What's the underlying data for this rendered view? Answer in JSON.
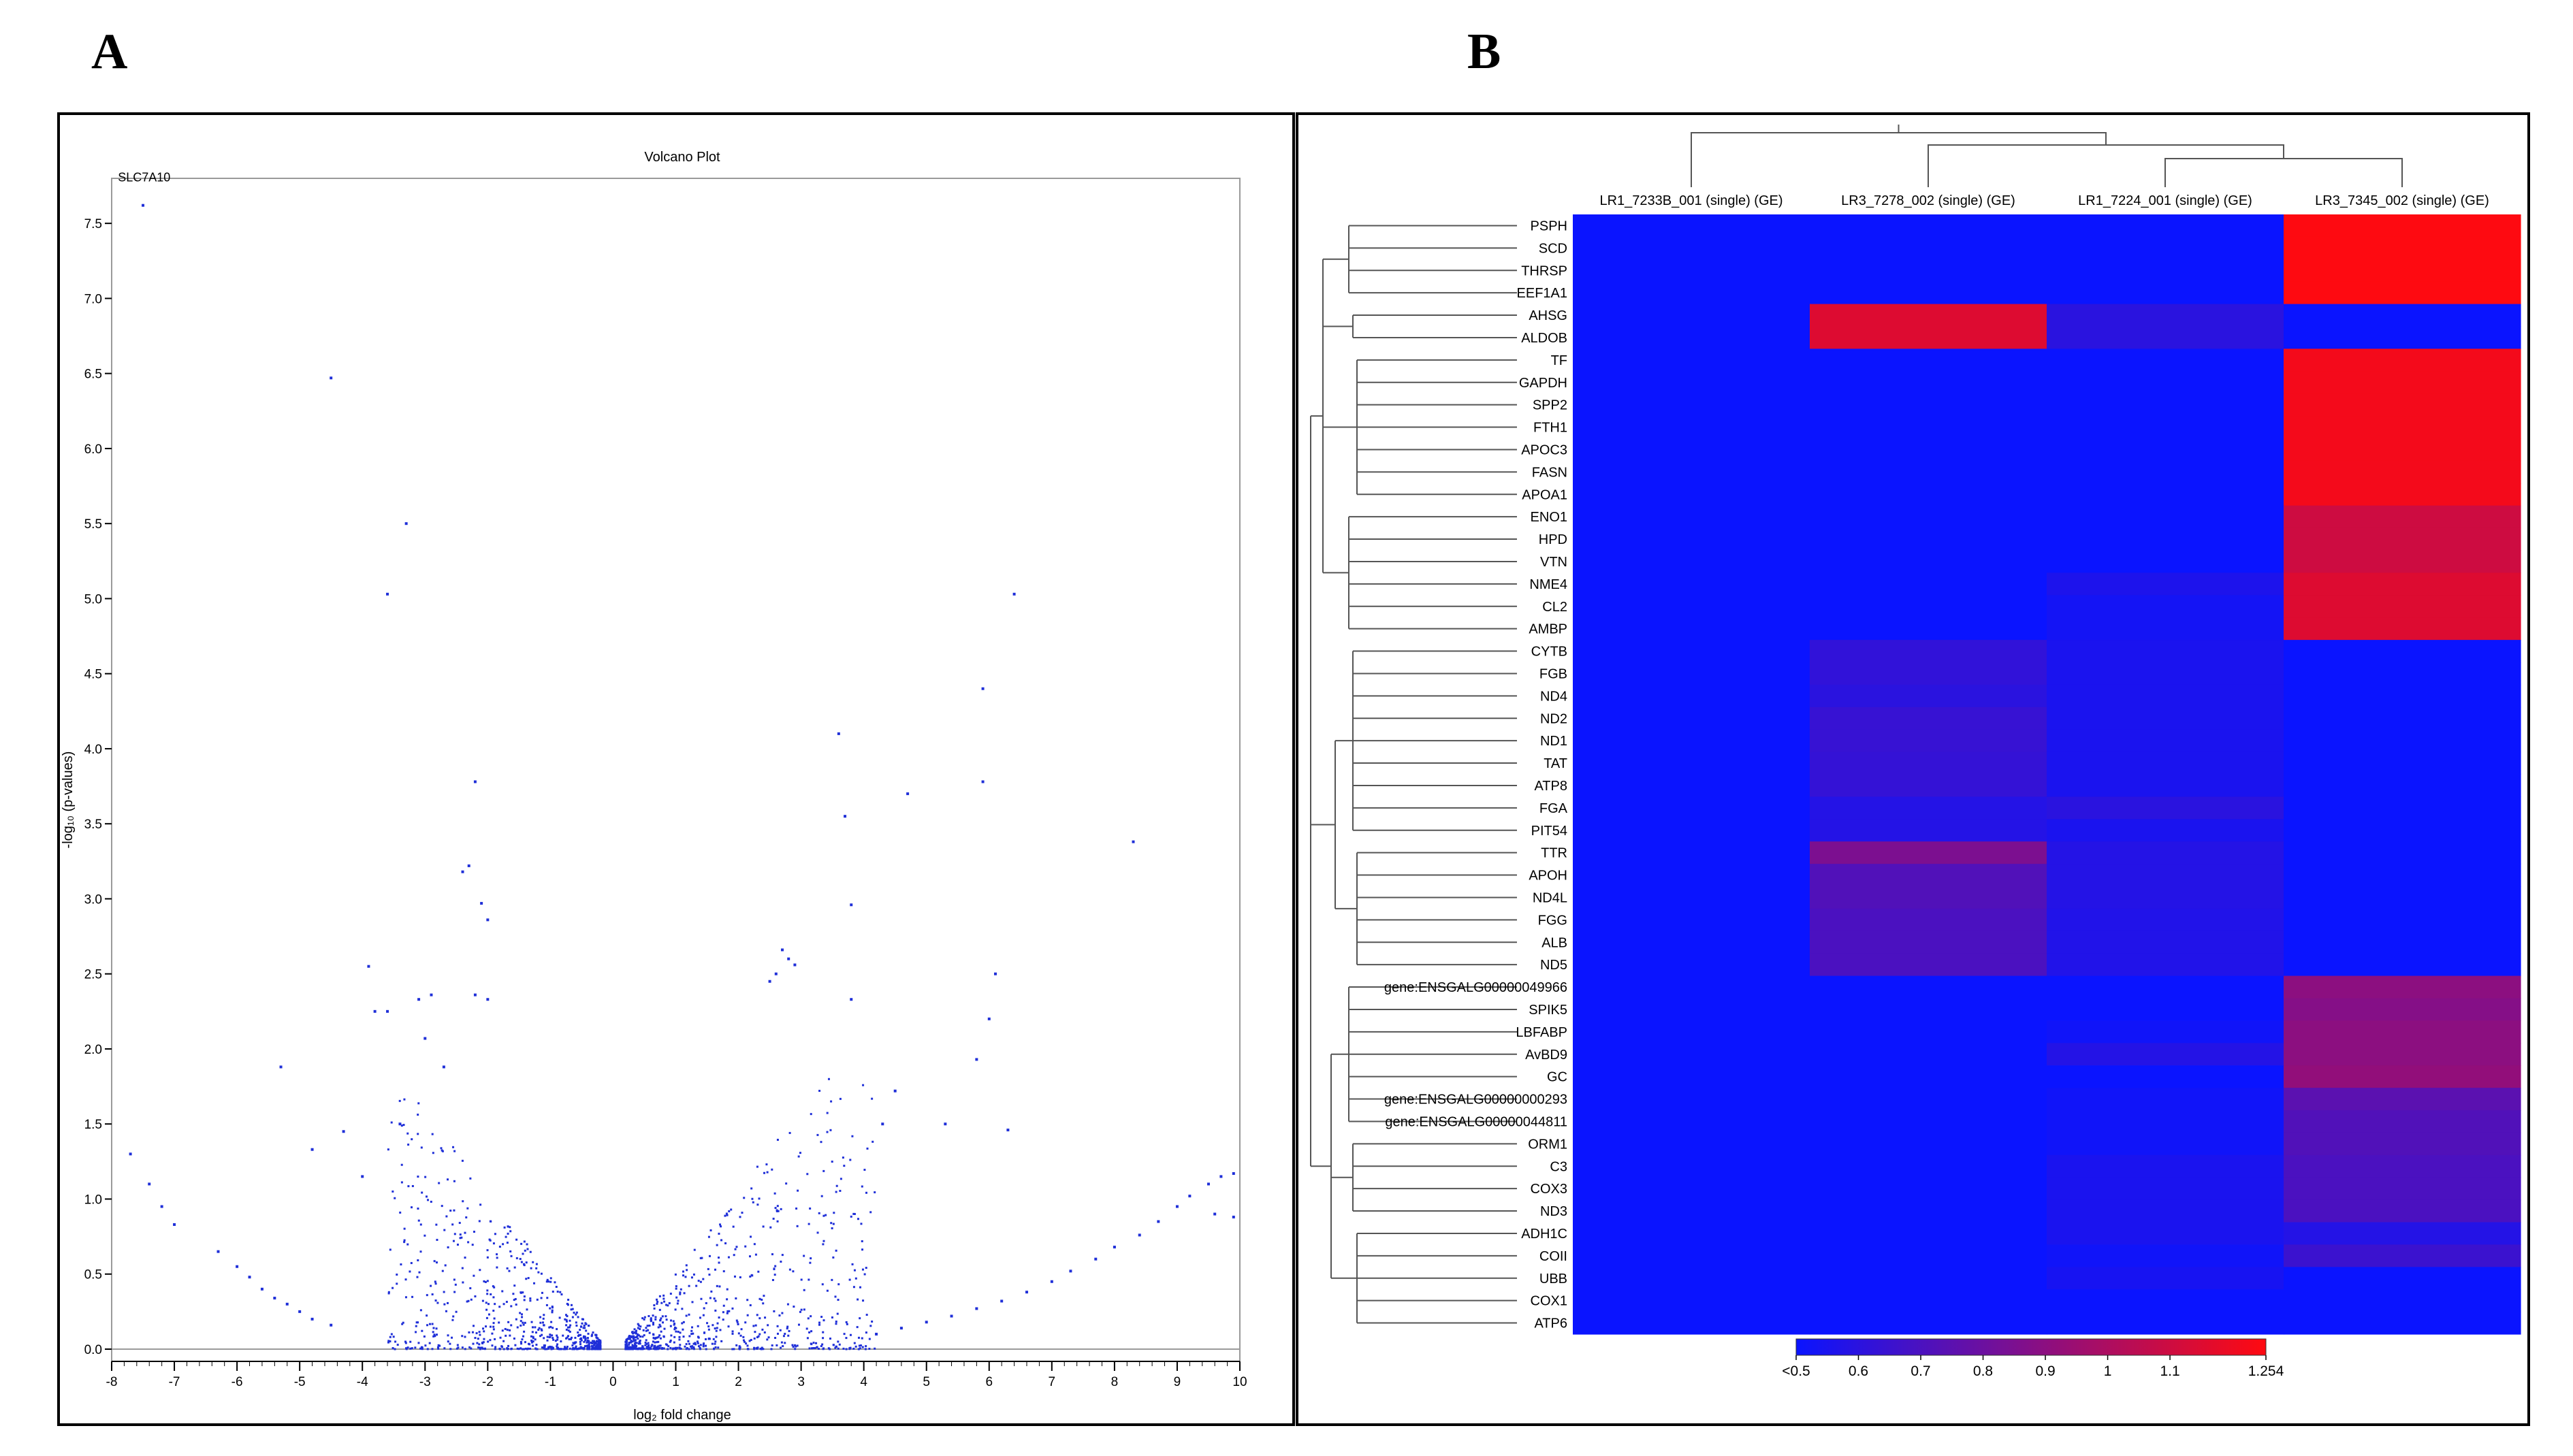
{
  "panels": {
    "a": {
      "letter": "A"
    },
    "b": {
      "letter": "B"
    }
  },
  "chart_data": [
    {
      "type": "scatter",
      "title": "Volcano Plot",
      "xlabel": "log₂ fold change",
      "ylabel": "-log₁₀ (p-values)",
      "xlim": [
        -8,
        10
      ],
      "ylim": [
        0,
        7.8
      ],
      "x_ticks": [
        -8,
        -7,
        -6,
        -5,
        -4,
        -3,
        -2,
        -1,
        0,
        1,
        2,
        3,
        4,
        5,
        6,
        7,
        8,
        9,
        10
      ],
      "y_ticks": [
        0.0,
        0.5,
        1.0,
        1.5,
        2.0,
        2.5,
        3.0,
        3.5,
        4.0,
        4.5,
        5.0,
        5.5,
        6.0,
        6.5,
        7.0,
        7.5
      ],
      "point_color": "#1f2fd8",
      "annotations": [
        {
          "text": "SLC7A10",
          "x": -7.9,
          "y": 7.78
        }
      ],
      "points": [
        {
          "x": -7.5,
          "y": 7.62
        },
        {
          "x": -4.5,
          "y": 6.47
        },
        {
          "x": -3.3,
          "y": 5.5
        },
        {
          "x": -3.6,
          "y": 5.03
        },
        {
          "x": 6.4,
          "y": 5.03
        },
        {
          "x": 5.9,
          "y": 4.4
        },
        {
          "x": 3.6,
          "y": 4.1
        },
        {
          "x": -2.2,
          "y": 3.78
        },
        {
          "x": 5.9,
          "y": 3.78
        },
        {
          "x": 4.7,
          "y": 3.7
        },
        {
          "x": 3.7,
          "y": 3.55
        },
        {
          "x": 8.3,
          "y": 3.38
        },
        {
          "x": -2.4,
          "y": 3.18
        },
        {
          "x": -2.3,
          "y": 3.22
        },
        {
          "x": -2.1,
          "y": 2.97
        },
        {
          "x": -2.0,
          "y": 2.86
        },
        {
          "x": 3.8,
          "y": 2.96
        },
        {
          "x": -3.9,
          "y": 2.55
        },
        {
          "x": -3.8,
          "y": 2.25
        },
        {
          "x": -3.6,
          "y": 2.25
        },
        {
          "x": -3.1,
          "y": 2.33
        },
        {
          "x": -2.9,
          "y": 2.36
        },
        {
          "x": -2.2,
          "y": 2.36
        },
        {
          "x": -2.0,
          "y": 2.33
        },
        {
          "x": 2.7,
          "y": 2.66
        },
        {
          "x": 2.8,
          "y": 2.6
        },
        {
          "x": 2.9,
          "y": 2.56
        },
        {
          "x": 2.6,
          "y": 2.5
        },
        {
          "x": 2.5,
          "y": 2.45
        },
        {
          "x": 6.1,
          "y": 2.5
        },
        {
          "x": 3.8,
          "y": 2.33
        },
        {
          "x": 6.0,
          "y": 2.2
        },
        {
          "x": -5.3,
          "y": 1.88
        },
        {
          "x": -3.0,
          "y": 2.07
        },
        {
          "x": -2.7,
          "y": 1.88
        },
        {
          "x": 5.8,
          "y": 1.93
        },
        {
          "x": -4.3,
          "y": 1.45
        },
        {
          "x": -4.8,
          "y": 1.33
        },
        {
          "x": -4.0,
          "y": 1.15
        },
        {
          "x": -3.4,
          "y": 1.5
        },
        {
          "x": 6.3,
          "y": 1.46
        },
        {
          "x": 5.3,
          "y": 1.5
        },
        {
          "x": 4.5,
          "y": 1.72
        },
        {
          "x": 4.3,
          "y": 1.5
        },
        {
          "x": -7.7,
          "y": 1.3
        },
        {
          "x": -7.4,
          "y": 1.1
        },
        {
          "x": -7.2,
          "y": 0.95
        },
        {
          "x": -7.0,
          "y": 0.83
        },
        {
          "x": -6.3,
          "y": 0.65
        },
        {
          "x": -6.0,
          "y": 0.55
        },
        {
          "x": -5.8,
          "y": 0.48
        },
        {
          "x": -5.6,
          "y": 0.4
        },
        {
          "x": -5.4,
          "y": 0.34
        },
        {
          "x": -5.2,
          "y": 0.3
        },
        {
          "x": -5.0,
          "y": 0.25
        },
        {
          "x": -4.8,
          "y": 0.2
        },
        {
          "x": -4.5,
          "y": 0.16
        },
        {
          "x": 9.9,
          "y": 1.17
        },
        {
          "x": 9.7,
          "y": 1.15
        },
        {
          "x": 9.5,
          "y": 1.1
        },
        {
          "x": 9.2,
          "y": 1.02
        },
        {
          "x": 9.0,
          "y": 0.95
        },
        {
          "x": 8.7,
          "y": 0.85
        },
        {
          "x": 8.4,
          "y": 0.76
        },
        {
          "x": 8.0,
          "y": 0.68
        },
        {
          "x": 7.7,
          "y": 0.6
        },
        {
          "x": 7.3,
          "y": 0.52
        },
        {
          "x": 7.0,
          "y": 0.45
        },
        {
          "x": 6.6,
          "y": 0.38
        },
        {
          "x": 6.2,
          "y": 0.32
        },
        {
          "x": 5.8,
          "y": 0.27
        },
        {
          "x": 5.4,
          "y": 0.22
        },
        {
          "x": 5.0,
          "y": 0.18
        },
        {
          "x": 4.6,
          "y": 0.14
        },
        {
          "x": 4.2,
          "y": 0.1
        },
        {
          "x": 9.9,
          "y": 0.88
        },
        {
          "x": 9.6,
          "y": 0.9
        }
      ],
      "cloud": {
        "left_x": [
          -3.6,
          -0.2
        ],
        "right_x": [
          0.2,
          4.2
        ],
        "y_max": 1.8
      }
    },
    {
      "type": "heatmap",
      "columns": [
        "LR1_7233B_001 (single) (GE)",
        "LR3_7278_002 (single) (GE)",
        "LR1_7224_001 (single) (GE)",
        "LR3_7345_002 (single) (GE)"
      ],
      "rows": [
        "PSPH",
        "SCD",
        "THRSP",
        "EEF1A1",
        "AHSG",
        "ALDOB",
        "TF",
        "GAPDH",
        "SPP2",
        "FTH1",
        "APOC3",
        "FASN",
        "APOA1",
        "ENO1",
        "HPD",
        "VTN",
        "NME4",
        "CL2",
        "AMBP",
        "CYTB",
        "FGB",
        "ND4",
        "ND2",
        "ND1",
        "TAT",
        "ATP8",
        "FGA",
        "PIT54",
        "TTR",
        "APOH",
        "ND4L",
        "FGG",
        "ALB",
        "ND5",
        "gene:ENSGALG00000049966",
        "SPIK5",
        "LBFABP",
        "AvBD9",
        "GC",
        "gene:ENSGALG00000000293",
        "gene:ENSGALG00000044811",
        "ORM1",
        "C3",
        "COX3",
        "ND3",
        "ADH1C",
        "COII",
        "UBB",
        "COX1",
        "ATP6"
      ],
      "values": [
        [
          0.5,
          0.5,
          0.5,
          1.25
        ],
        [
          0.5,
          0.5,
          0.5,
          1.25
        ],
        [
          0.5,
          0.5,
          0.5,
          1.25
        ],
        [
          0.5,
          0.5,
          0.5,
          1.25
        ],
        [
          0.5,
          1.15,
          0.6,
          0.5
        ],
        [
          0.5,
          1.15,
          0.6,
          0.5
        ],
        [
          0.5,
          0.5,
          0.5,
          1.22
        ],
        [
          0.5,
          0.5,
          0.5,
          1.22
        ],
        [
          0.5,
          0.5,
          0.5,
          1.22
        ],
        [
          0.5,
          0.5,
          0.5,
          1.22
        ],
        [
          0.5,
          0.5,
          0.5,
          1.22
        ],
        [
          0.5,
          0.5,
          0.5,
          1.22
        ],
        [
          0.5,
          0.5,
          0.5,
          1.22
        ],
        [
          0.5,
          0.5,
          0.5,
          1.1
        ],
        [
          0.5,
          0.5,
          0.5,
          1.1
        ],
        [
          0.5,
          0.5,
          0.5,
          1.1
        ],
        [
          0.5,
          0.5,
          0.56,
          1.15
        ],
        [
          0.5,
          0.5,
          0.53,
          1.15
        ],
        [
          0.5,
          0.5,
          0.53,
          1.15
        ],
        [
          0.5,
          0.62,
          0.55,
          0.5
        ],
        [
          0.5,
          0.62,
          0.55,
          0.5
        ],
        [
          0.5,
          0.6,
          0.55,
          0.5
        ],
        [
          0.5,
          0.64,
          0.55,
          0.5
        ],
        [
          0.5,
          0.64,
          0.55,
          0.5
        ],
        [
          0.5,
          0.63,
          0.55,
          0.5
        ],
        [
          0.5,
          0.63,
          0.55,
          0.5
        ],
        [
          0.5,
          0.58,
          0.6,
          0.5
        ],
        [
          0.5,
          0.58,
          0.55,
          0.5
        ],
        [
          0.5,
          0.85,
          0.58,
          0.5
        ],
        [
          0.5,
          0.72,
          0.58,
          0.5
        ],
        [
          0.5,
          0.72,
          0.58,
          0.5
        ],
        [
          0.5,
          0.7,
          0.57,
          0.5
        ],
        [
          0.5,
          0.7,
          0.57,
          0.5
        ],
        [
          0.5,
          0.7,
          0.57,
          0.5
        ],
        [
          0.5,
          0.5,
          0.5,
          0.9
        ],
        [
          0.5,
          0.5,
          0.5,
          0.88
        ],
        [
          0.5,
          0.5,
          0.52,
          0.9
        ],
        [
          0.5,
          0.5,
          0.58,
          0.9
        ],
        [
          0.5,
          0.5,
          0.5,
          0.92
        ],
        [
          0.5,
          0.5,
          0.52,
          0.75
        ],
        [
          0.5,
          0.5,
          0.52,
          0.72
        ],
        [
          0.5,
          0.5,
          0.52,
          0.72
        ],
        [
          0.5,
          0.5,
          0.55,
          0.7
        ],
        [
          0.5,
          0.5,
          0.55,
          0.7
        ],
        [
          0.5,
          0.5,
          0.55,
          0.7
        ],
        [
          0.5,
          0.5,
          0.55,
          0.58
        ],
        [
          0.5,
          0.5,
          0.52,
          0.65
        ],
        [
          0.5,
          0.5,
          0.54,
          0.5
        ],
        [
          0.5,
          0.5,
          0.5,
          0.5
        ],
        [
          0.5,
          0.5,
          0.5,
          0.5
        ]
      ],
      "colorbar": {
        "min": 0.5,
        "max": 1.254,
        "tick_values": [
          0.5,
          0.6,
          0.7,
          0.8,
          0.9,
          1.0,
          1.1,
          1.254
        ],
        "tick_labels": [
          "<0.5",
          "0.6",
          "0.7",
          "0.8",
          "0.9",
          "1",
          "1.1",
          "1.254"
        ],
        "low_color": "#0a14ff",
        "high_color": "#ff0a10"
      }
    }
  ]
}
